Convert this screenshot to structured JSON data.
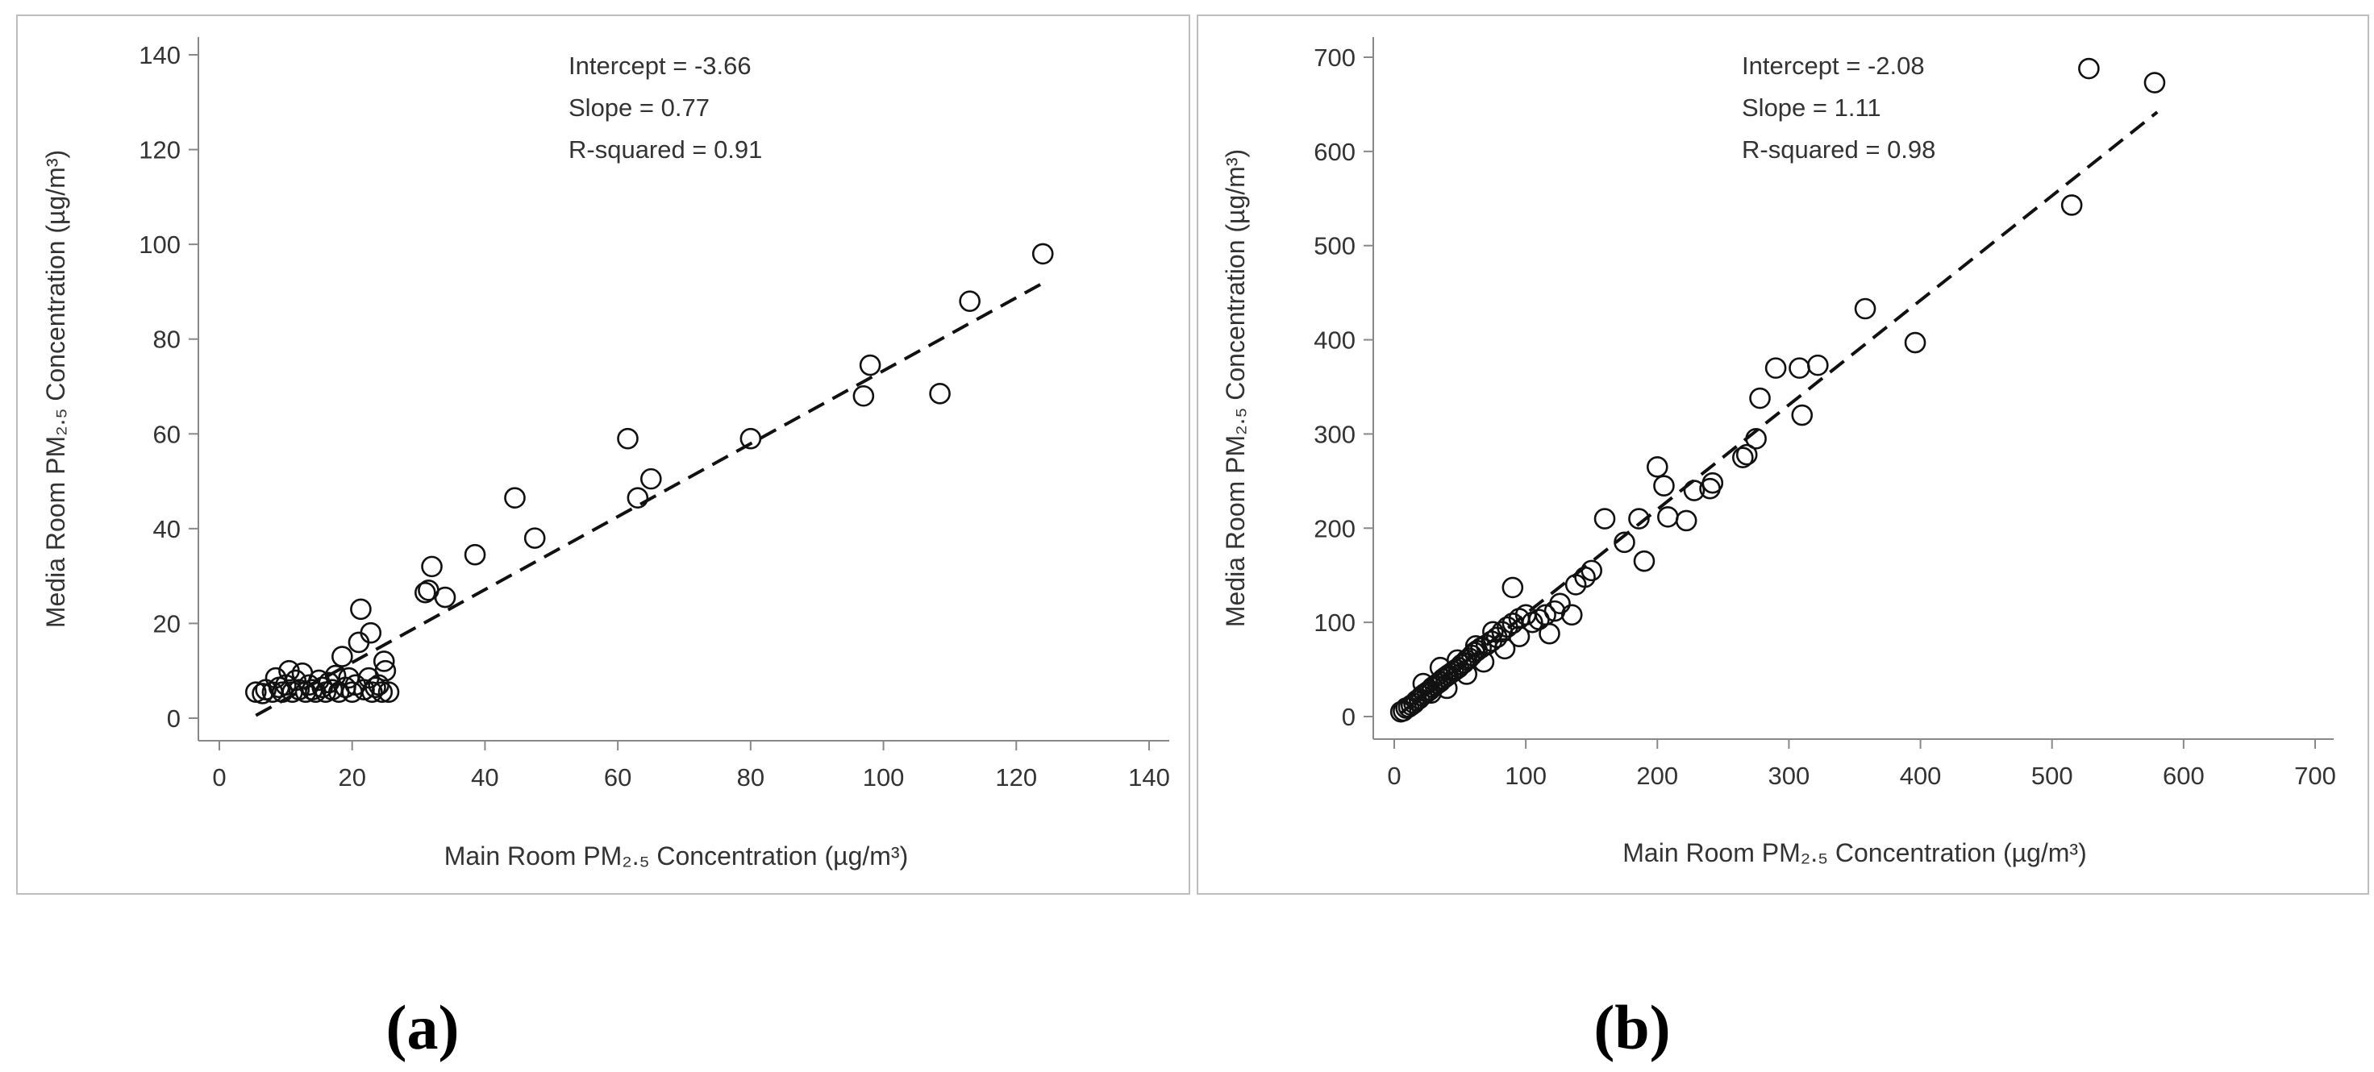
{
  "chart_data": [
    {
      "type": "scatter",
      "panel_label": "a",
      "xlabel": "Main Room PM₂.₅ Concentration (µg/m³)",
      "ylabel": "Media Room PM₂.₅ Concentration (µg/m³)",
      "xlim": [
        0,
        140
      ],
      "ylim": [
        0,
        140
      ],
      "xticks": [
        0,
        20,
        40,
        60,
        80,
        100,
        120,
        140
      ],
      "yticks": [
        0,
        20,
        40,
        60,
        80,
        100,
        120,
        140
      ],
      "stats": [
        "Intercept = -3.66",
        "Slope = 0.77",
        "R-squared =  0.91"
      ],
      "fit": {
        "intercept": -3.66,
        "slope": 0.77,
        "x_range": [
          5.5,
          124
        ],
        "style": "dashed"
      },
      "points": [
        [
          5.5,
          5.5
        ],
        [
          6.5,
          5.2
        ],
        [
          7,
          6
        ],
        [
          8,
          5.5
        ],
        [
          8.5,
          8.5
        ],
        [
          9,
          6.5
        ],
        [
          9.5,
          5.5
        ],
        [
          10,
          7
        ],
        [
          10.5,
          10
        ],
        [
          11,
          5.5
        ],
        [
          11.5,
          8
        ],
        [
          12,
          6
        ],
        [
          12.5,
          9.5
        ],
        [
          13,
          5.5
        ],
        [
          13.5,
          7
        ],
        [
          14,
          6
        ],
        [
          14.5,
          5.5
        ],
        [
          15,
          8
        ],
        [
          15.5,
          6.5
        ],
        [
          16,
          5.5
        ],
        [
          16.5,
          7.5
        ],
        [
          17,
          6
        ],
        [
          17.5,
          9
        ],
        [
          18,
          5.5
        ],
        [
          18.5,
          13
        ],
        [
          19,
          6.5
        ],
        [
          19.5,
          8.5
        ],
        [
          20,
          5.5
        ],
        [
          20.5,
          7
        ],
        [
          21,
          16
        ],
        [
          21.3,
          23
        ],
        [
          21.8,
          6
        ],
        [
          22.5,
          8.5
        ],
        [
          22.8,
          18
        ],
        [
          23,
          5.5
        ],
        [
          23.5,
          6.5
        ],
        [
          24,
          7
        ],
        [
          24.5,
          5.5
        ],
        [
          24.8,
          12
        ],
        [
          25,
          10
        ],
        [
          25.5,
          5.5
        ],
        [
          31,
          26.5
        ],
        [
          31.5,
          27
        ],
        [
          32,
          32
        ],
        [
          34,
          25.5
        ],
        [
          38.5,
          34.5
        ],
        [
          44.5,
          46.5
        ],
        [
          47.5,
          38
        ],
        [
          61.5,
          59
        ],
        [
          63,
          46.5
        ],
        [
          65,
          50.5
        ],
        [
          80,
          59
        ],
        [
          97,
          68
        ],
        [
          98,
          74.5
        ],
        [
          108.5,
          68.5
        ],
        [
          113,
          88
        ],
        [
          124,
          98
        ]
      ]
    },
    {
      "type": "scatter",
      "panel_label": "b",
      "xlabel": "Main Room PM₂.₅ Concentration (µg/m³)",
      "ylabel": "Media Room PM₂.₅ Concentration (µg/m³)",
      "xlim": [
        0,
        700
      ],
      "ylim": [
        0,
        700
      ],
      "xticks": [
        0,
        100,
        200,
        300,
        400,
        500,
        600,
        700
      ],
      "yticks": [
        0,
        100,
        200,
        300,
        400,
        500,
        600,
        700
      ],
      "stats": [
        "Intercept = -2.08",
        "Slope = 1.11",
        "R-squared =  0.98"
      ],
      "fit": {
        "intercept": -2.08,
        "slope": 1.11,
        "x_range": [
          5,
          580
        ],
        "style": "dashed"
      },
      "points": [
        [
          5,
          5
        ],
        [
          7,
          6
        ],
        [
          9,
          9
        ],
        [
          11,
          10
        ],
        [
          13,
          12
        ],
        [
          15,
          14
        ],
        [
          17,
          17
        ],
        [
          19,
          19
        ],
        [
          21,
          22
        ],
        [
          23,
          24
        ],
        [
          25,
          26
        ],
        [
          27,
          28
        ],
        [
          29,
          31
        ],
        [
          31,
          33
        ],
        [
          33,
          35
        ],
        [
          35,
          37
        ],
        [
          37,
          40
        ],
        [
          39,
          42
        ],
        [
          41,
          44
        ],
        [
          43,
          46
        ],
        [
          45,
          48
        ],
        [
          47,
          50
        ],
        [
          49,
          52
        ],
        [
          51,
          55
        ],
        [
          53,
          57
        ],
        [
          55,
          60
        ],
        [
          57,
          62
        ],
        [
          59,
          65
        ],
        [
          61,
          68
        ],
        [
          63,
          70
        ],
        [
          66,
          73
        ],
        [
          70,
          76
        ],
        [
          74,
          80
        ],
        [
          78,
          84
        ],
        [
          82,
          90
        ],
        [
          86,
          95
        ],
        [
          90,
          99
        ],
        [
          95,
          104
        ],
        [
          100,
          108
        ],
        [
          22,
          35
        ],
        [
          28,
          25
        ],
        [
          35,
          52
        ],
        [
          40,
          30
        ],
        [
          48,
          60
        ],
        [
          55,
          45
        ],
        [
          62,
          75
        ],
        [
          68,
          58
        ],
        [
          75,
          90
        ],
        [
          84,
          72
        ],
        [
          90,
          137
        ],
        [
          95,
          85
        ],
        [
          105,
          100
        ],
        [
          110,
          103
        ],
        [
          115,
          108
        ],
        [
          118,
          88
        ],
        [
          122,
          112
        ],
        [
          126,
          120
        ],
        [
          135,
          108
        ],
        [
          138,
          140
        ],
        [
          145,
          148
        ],
        [
          150,
          155
        ],
        [
          160,
          210
        ],
        [
          175,
          185
        ],
        [
          186,
          210
        ],
        [
          190,
          165
        ],
        [
          200,
          265
        ],
        [
          205,
          245
        ],
        [
          208,
          212
        ],
        [
          222,
          208
        ],
        [
          228,
          240
        ],
        [
          240,
          242
        ],
        [
          242,
          248
        ],
        [
          265,
          275
        ],
        [
          268,
          278
        ],
        [
          275,
          295
        ],
        [
          278,
          338
        ],
        [
          290,
          370
        ],
        [
          308,
          370
        ],
        [
          310,
          320
        ],
        [
          322,
          373
        ],
        [
          358,
          433
        ],
        [
          396,
          397
        ],
        [
          515,
          543
        ],
        [
          528,
          688
        ],
        [
          578,
          673
        ]
      ]
    }
  ],
  "captions": {
    "a": "(a)",
    "b": "(b)"
  }
}
